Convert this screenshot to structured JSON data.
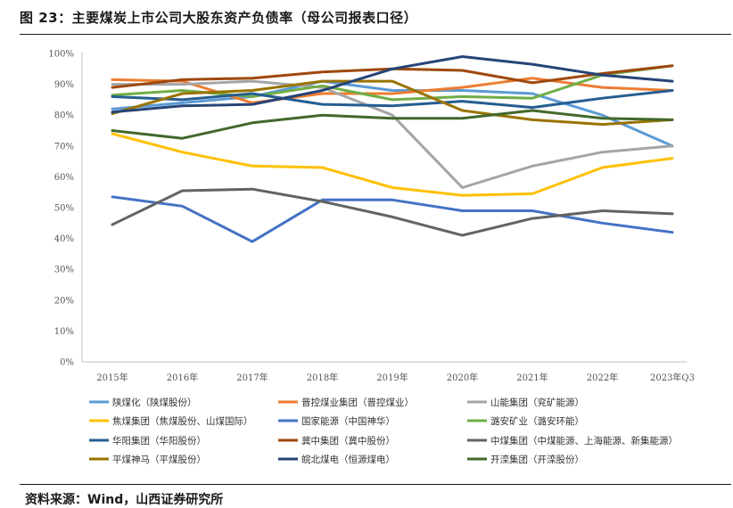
{
  "title": "图 23：主要煤炭上市公司大股东资产负债率（母公司报表口径）",
  "source": "资料来源：Wind，山西证券研究所",
  "chart_data": {
    "type": "line",
    "title": "",
    "xlabel": "",
    "ylabel": "",
    "ylim": [
      0,
      100
    ],
    "y_ticks": [
      "0%",
      "10%",
      "20%",
      "30%",
      "40%",
      "50%",
      "60%",
      "70%",
      "80%",
      "90%",
      "100%"
    ],
    "categories": [
      "2015年",
      "2016年",
      "2017年",
      "2018年",
      "2019年",
      "2020年",
      "2021年",
      "2022年",
      "2023年Q3"
    ],
    "legend_position": "bottom",
    "grid": false,
    "series": [
      {
        "name": "陕煤化（陕煤股份）",
        "color": "#5b9bd5",
        "values": [
          82,
          84,
          86,
          91,
          88,
          88,
          87,
          80,
          70
        ]
      },
      {
        "name": "晋控煤业集团（晋控煤业）",
        "color": "#ed7d31",
        "values": [
          91.5,
          91,
          84,
          87,
          87,
          89,
          92,
          89,
          88
        ]
      },
      {
        "name": "山能集团（兖矿能源）",
        "color": "#a5a5a5",
        "values": [
          90,
          90,
          91,
          89,
          80,
          56.5,
          63.5,
          68,
          70
        ]
      },
      {
        "name": "焦煤集团（焦煤股份、山煤国际）",
        "color": "#ffc000",
        "values": [
          74,
          68,
          63.5,
          63,
          56.5,
          54,
          54.5,
          63,
          66
        ]
      },
      {
        "name": "国家能源（中国神华）",
        "color": "#4472c4",
        "values": [
          53.5,
          50.5,
          39,
          52.5,
          52.5,
          49,
          49,
          45,
          42
        ]
      },
      {
        "name": "潞安矿业（潞安环能）",
        "color": "#70ad47",
        "values": [
          86.5,
          88,
          86,
          89.5,
          85,
          86,
          85.5,
          93,
          96
        ]
      },
      {
        "name": "华阳集团（华阳股份）",
        "color": "#255e91",
        "values": [
          86,
          85,
          87,
          83.5,
          83,
          84.5,
          82.5,
          85.5,
          88
        ]
      },
      {
        "name": "冀中集团（冀中股份）",
        "color": "#9e480e",
        "values": [
          89,
          91.5,
          92,
          94,
          95,
          94.5,
          90.5,
          93.5,
          96
        ]
      },
      {
        "name": "中煤集团（中煤能源、上海能源、新集能源）",
        "color": "#636363",
        "values": [
          44.5,
          55.5,
          56,
          52,
          47,
          41,
          46.5,
          49,
          48
        ]
      },
      {
        "name": "平煤神马（平煤股份）",
        "color": "#997300",
        "values": [
          80.5,
          87,
          88,
          91,
          91,
          81.5,
          78.5,
          77,
          78.5
        ]
      },
      {
        "name": "皖北煤电（恒源煤电）",
        "color": "#264478",
        "values": [
          81,
          83,
          83.5,
          88,
          95,
          99,
          96.5,
          93,
          91
        ]
      },
      {
        "name": "开滦集团（开滦股份）",
        "color": "#43682b",
        "values": [
          75,
          72.5,
          77.5,
          80,
          79,
          79,
          81.5,
          79,
          78.5
        ]
      }
    ]
  }
}
